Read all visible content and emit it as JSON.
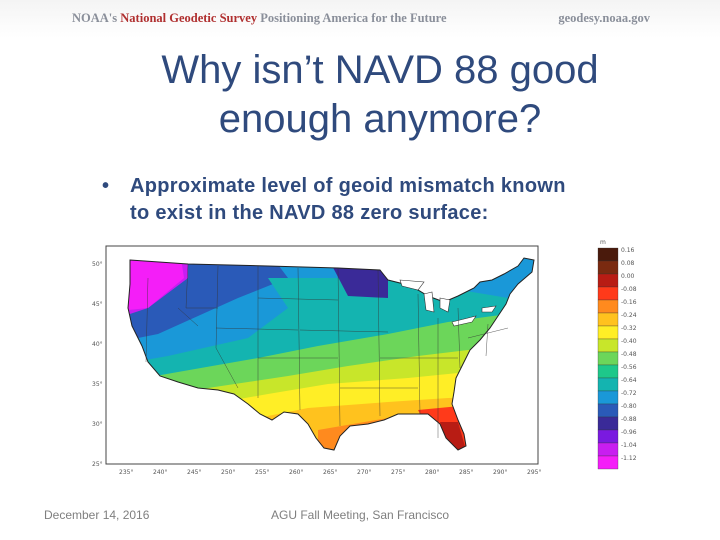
{
  "header": {
    "org_prefix": "NOAA's",
    "org_name": "National Geodetic Survey",
    "tagline": "Positioning America for the Future",
    "url": "geodesy.noaa.gov"
  },
  "slide": {
    "title_line1": "Why isn’t NAVD 88 good",
    "title_line2": "enough anymore?",
    "bullet_symbol": "•",
    "bullet_line1": "Approximate level of geoid mismatch known",
    "bullet_line2": "to exist in the NAVD 88 zero surface:"
  },
  "map": {
    "colorbar_unit": "m",
    "colorbar_labels": [
      "0.16",
      "0.08",
      "0.00",
      "-0.08",
      "-0.16",
      "-0.24",
      "-0.32",
      "-0.40",
      "-0.48",
      "-0.56",
      "-0.64",
      "-0.72",
      "-0.80",
      "-0.88",
      "-0.96",
      "-1.04",
      "-1.12"
    ],
    "colorbar_colors": [
      "#4a1a0c",
      "#7a2a10",
      "#b81c14",
      "#ff3a1a",
      "#ff8a1e",
      "#ffc21e",
      "#ffee26",
      "#c8e62a",
      "#6cd65a",
      "#1ec88a",
      "#14b4b0",
      "#1a98d8",
      "#2a5ab8",
      "#3a2a98",
      "#7a1ae0",
      "#c81ef0",
      "#f41ef8"
    ],
    "lat_labels": [
      "50°",
      "45°",
      "40°",
      "35°",
      "30°",
      "25°"
    ],
    "lon_labels": [
      "235°",
      "240°",
      "245°",
      "250°",
      "255°",
      "260°",
      "265°",
      "270°",
      "275°",
      "280°",
      "285°",
      "290°",
      "295°"
    ]
  },
  "footer": {
    "date": "December 14, 2016",
    "center": "AGU Fall Meeting, San Francisco"
  }
}
